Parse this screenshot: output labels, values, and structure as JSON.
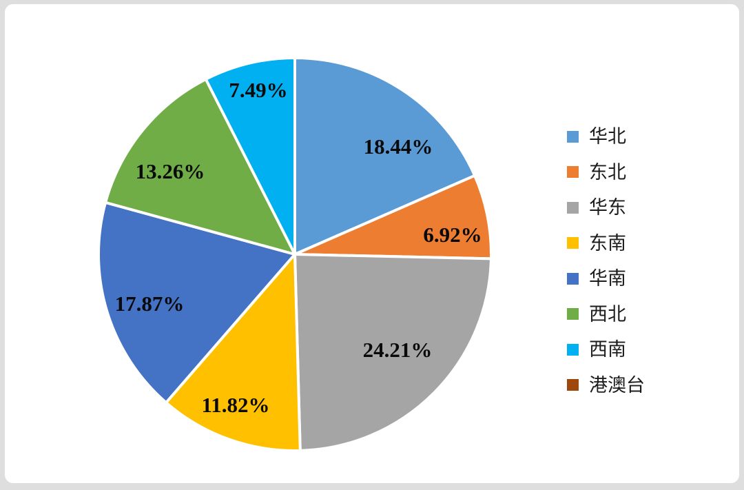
{
  "chart_data": {
    "type": "pie",
    "title": "",
    "categories": [
      "华北",
      "东北",
      "华东",
      "东南",
      "华南",
      "西北",
      "西南",
      "港澳台"
    ],
    "values": [
      18.44,
      6.92,
      24.21,
      11.82,
      17.87,
      13.26,
      7.49,
      0
    ],
    "labels": [
      "18.44%",
      "6.92%",
      "24.21%",
      "11.82%",
      "17.87%",
      "13.26%",
      "7.49%",
      ""
    ],
    "colors": [
      "#5B9BD5",
      "#ED7D31",
      "#A5A5A5",
      "#FFC000",
      "#4472C4",
      "#70AD47",
      "#00B0F0",
      "#9E480E"
    ],
    "legend_position": "right",
    "start_angle_deg": 0,
    "direction": "clockwise",
    "slice_border_color": "#FFFFFF"
  }
}
